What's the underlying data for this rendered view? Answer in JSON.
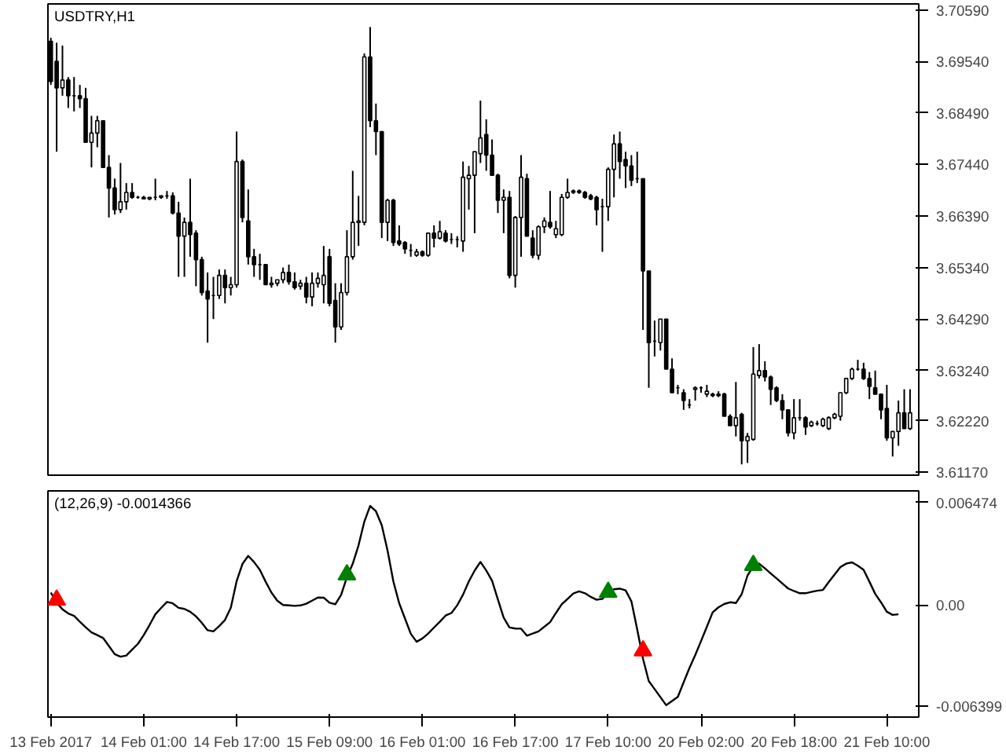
{
  "chart_data": [
    {
      "type": "candlestick",
      "title": "USDTRY,H1",
      "color": "#000000",
      "tick_labels": "y",
      "grid": false,
      "categories": [
        null,
        null,
        null,
        null,
        null,
        null,
        null,
        null,
        null,
        null,
        null,
        null,
        null,
        null,
        null,
        null,
        null,
        null,
        null,
        null,
        null,
        null,
        null,
        null,
        null,
        null,
        null,
        null,
        null,
        null,
        null,
        null,
        null,
        null,
        null,
        null,
        null,
        null,
        null,
        null,
        null,
        null,
        null,
        null,
        null,
        null,
        null,
        null,
        null,
        null,
        null,
        null,
        null,
        null,
        null,
        null,
        null,
        null,
        null,
        null,
        null,
        null,
        null,
        null,
        null,
        null,
        null,
        null,
        null,
        null,
        null,
        null,
        null,
        null,
        null,
        null,
        null,
        null,
        null,
        null,
        null,
        null,
        null,
        null,
        null,
        null,
        null,
        null,
        null,
        null,
        null,
        null,
        null,
        null,
        null,
        null,
        null,
        null,
        null,
        null,
        null,
        null,
        null,
        null,
        null,
        null,
        null,
        null,
        null,
        null,
        null,
        null,
        null,
        null,
        null,
        null,
        null,
        null,
        null,
        null,
        null,
        null,
        null,
        null,
        null,
        null,
        null,
        null,
        null,
        null,
        null,
        null,
        null,
        null,
        null,
        null,
        null,
        null,
        null,
        null,
        null,
        null,
        null,
        null,
        null,
        null,
        null,
        null,
        null
      ],
      "ohlc": [
        [
          3.6995,
          3.7002,
          3.6906,
          3.6913
        ],
        [
          3.6954,
          3.6992,
          3.677,
          3.69
        ],
        [
          3.69,
          3.6986,
          3.6884,
          3.6916
        ],
        [
          3.6916,
          3.6922,
          3.6859,
          3.6884
        ],
        [
          3.6884,
          3.6922,
          3.6852,
          3.6884
        ],
        [
          3.6884,
          3.6906,
          3.6859,
          3.6878
        ],
        [
          3.6878,
          3.69,
          3.6789,
          3.6789
        ],
        [
          3.6789,
          3.6843,
          3.6738,
          3.6808
        ],
        [
          3.6808,
          3.6843,
          3.6779,
          3.6833
        ],
        [
          3.6833,
          3.6833,
          3.6738,
          3.6738
        ],
        [
          3.6738,
          3.6763,
          3.6636,
          3.6696
        ],
        [
          3.6696,
          3.6715,
          3.6642,
          3.6652
        ],
        [
          3.6652,
          3.6747,
          3.6645,
          3.6668
        ],
        [
          3.6668,
          3.6706,
          3.6652,
          3.6687
        ],
        [
          3.6687,
          3.6706,
          3.6674,
          3.6677
        ],
        [
          3.6677,
          3.668,
          3.6674,
          3.6677
        ],
        [
          3.6677,
          3.668,
          3.6674,
          3.6674
        ],
        [
          3.6674,
          3.6677,
          3.6671,
          3.6677
        ],
        [
          3.6677,
          3.6715,
          3.6671,
          3.6677
        ],
        [
          3.6677,
          3.668,
          3.6674,
          3.668
        ],
        [
          3.668,
          3.669,
          3.6674,
          3.668
        ],
        [
          3.668,
          3.6687,
          3.6642,
          3.6645
        ],
        [
          3.6645,
          3.6668,
          3.6515,
          3.6598
        ],
        [
          3.6598,
          3.6636,
          3.6515,
          3.6626
        ],
        [
          3.6626,
          3.6715,
          3.6556,
          3.6601
        ],
        [
          3.6604,
          3.661,
          3.6496,
          3.655
        ],
        [
          3.655,
          3.6556,
          3.6477,
          3.6483
        ],
        [
          3.6486,
          3.6524,
          3.6381,
          3.647
        ],
        [
          3.6477,
          3.6515,
          3.6429,
          3.6477
        ],
        [
          3.6477,
          3.653,
          3.647,
          3.6518
        ],
        [
          3.6518,
          3.653,
          3.6461,
          3.6493
        ],
        [
          3.6493,
          3.6515,
          3.6477,
          3.6499
        ],
        [
          3.6499,
          3.6811,
          3.6493,
          3.675
        ],
        [
          3.675,
          3.6754,
          3.6626,
          3.6636
        ],
        [
          3.6629,
          3.6693,
          3.654,
          3.6556
        ],
        [
          3.6556,
          3.6572,
          3.6515,
          3.654
        ],
        [
          3.654,
          3.6562,
          3.6509,
          3.654
        ],
        [
          3.654,
          3.654,
          3.6499,
          3.6499
        ],
        [
          3.6499,
          3.6515,
          3.6493,
          3.6502
        ],
        [
          3.6502,
          3.6509,
          3.6496,
          3.6509
        ],
        [
          3.6509,
          3.6534,
          3.6502,
          3.6524
        ],
        [
          3.6524,
          3.654,
          3.6499,
          3.6505
        ],
        [
          3.6505,
          3.6524,
          3.6489,
          3.6493
        ],
        [
          3.6496,
          3.6509,
          3.6489,
          3.6502
        ],
        [
          3.6502,
          3.6515,
          3.6461,
          3.6474
        ],
        [
          3.6474,
          3.6524,
          3.6455,
          3.6502
        ],
        [
          3.6502,
          3.6524,
          3.6493,
          3.6512
        ],
        [
          3.6499,
          3.6578,
          3.6461,
          3.6518
        ],
        [
          3.6556,
          3.6572,
          3.6455,
          3.6461
        ],
        [
          3.6467,
          3.6502,
          3.6381,
          3.6413
        ],
        [
          3.6413,
          3.6502,
          3.6407,
          3.6483
        ],
        [
          3.6483,
          3.661,
          3.6477,
          3.6556
        ],
        [
          3.6556,
          3.6731,
          3.655,
          3.6626
        ],
        [
          3.6626,
          3.668,
          3.6578,
          3.6629
        ],
        [
          3.6626,
          3.697,
          3.662,
          3.6963
        ],
        [
          3.6963,
          3.7024,
          3.682,
          3.6833
        ],
        [
          3.6833,
          3.6868,
          3.6763,
          3.6811
        ],
        [
          3.6811,
          3.6811,
          3.6594,
          3.6626
        ],
        [
          3.6626,
          3.6674,
          3.6588,
          3.6671
        ],
        [
          3.6671,
          3.6674,
          3.6578,
          3.6585
        ],
        [
          3.6588,
          3.662,
          3.6578,
          3.6582
        ],
        [
          3.6585,
          3.6588,
          3.6562,
          3.6572
        ],
        [
          3.6569,
          3.6582,
          3.6556,
          3.6569
        ],
        [
          3.6559,
          3.6572,
          3.6556,
          3.6566
        ],
        [
          3.6566,
          3.6569,
          3.6556,
          3.6559
        ],
        [
          3.6559,
          3.6604,
          3.6556,
          3.6604
        ],
        [
          3.6604,
          3.662,
          3.6575,
          3.6594
        ],
        [
          3.6594,
          3.6629,
          3.6591,
          3.6607
        ],
        [
          3.6604,
          3.661,
          3.6585,
          3.6588
        ],
        [
          3.6591,
          3.6604,
          3.6582,
          3.6591
        ],
        [
          3.6591,
          3.6598,
          3.6575,
          3.6591
        ],
        [
          3.6588,
          3.675,
          3.6566,
          3.6718
        ],
        [
          3.6715,
          3.6741,
          3.6652,
          3.6722
        ],
        [
          3.6722,
          3.677,
          3.6604,
          3.677
        ],
        [
          3.6766,
          3.6874,
          3.6747,
          3.6798
        ],
        [
          3.6805,
          3.6836,
          3.6731,
          3.6763
        ],
        [
          3.6763,
          3.6795,
          3.6722,
          3.6722
        ],
        [
          3.6722,
          3.6725,
          3.6645,
          3.6671
        ],
        [
          3.6671,
          3.6693,
          3.6604,
          3.6677
        ],
        [
          3.6677,
          3.669,
          3.6512,
          3.6518
        ],
        [
          3.6518,
          3.6639,
          3.6493,
          3.6636
        ],
        [
          3.6636,
          3.6763,
          3.6556,
          3.6718
        ],
        [
          3.6715,
          3.6725,
          3.6598,
          3.6598
        ],
        [
          3.6594,
          3.661,
          3.6553,
          3.6559
        ],
        [
          3.6559,
          3.662,
          3.655,
          3.6617
        ],
        [
          3.6617,
          3.6636,
          3.6604,
          3.6629
        ],
        [
          3.6626,
          3.669,
          3.6613,
          3.6617
        ],
        [
          3.6601,
          3.6629,
          3.6594,
          3.6613
        ],
        [
          3.6601,
          3.6684,
          3.6598,
          3.6677
        ],
        [
          3.6677,
          3.6715,
          3.6674,
          3.6687
        ],
        [
          3.6687,
          3.6693,
          3.6684,
          3.669
        ],
        [
          3.669,
          3.6693,
          3.6684,
          3.6687
        ],
        [
          3.6687,
          3.669,
          3.6674,
          3.6677
        ],
        [
          3.668,
          3.6684,
          3.6671,
          3.6674
        ],
        [
          3.6677,
          3.668,
          3.662,
          3.6652
        ],
        [
          3.6658,
          3.6674,
          3.6566,
          3.6658
        ],
        [
          3.6658,
          3.6738,
          3.6629,
          3.6734
        ],
        [
          3.6734,
          3.6805,
          3.6677,
          3.6786
        ],
        [
          3.6786,
          3.6811,
          3.6715,
          3.675
        ],
        [
          3.6754,
          3.677,
          3.6696,
          3.6741
        ],
        [
          3.6741,
          3.6763,
          3.67,
          3.6712
        ],
        [
          3.6715,
          3.677,
          3.6706,
          3.6715
        ],
        [
          3.6715,
          3.6715,
          3.6407,
          3.6527
        ],
        [
          3.6527,
          3.6527,
          3.6289,
          3.6381
        ],
        [
          3.6384,
          3.6426,
          3.6353,
          3.6384
        ],
        [
          3.6381,
          3.6429,
          3.6365,
          3.6429
        ],
        [
          3.6429,
          3.6429,
          3.6327,
          3.6327
        ],
        [
          3.6327,
          3.6349,
          3.6279,
          3.6279
        ],
        [
          3.6289,
          3.6295,
          3.6276,
          3.6289
        ],
        [
          3.6279,
          3.6286,
          3.6244,
          3.6263
        ],
        [
          3.6254,
          3.6266,
          3.6247,
          3.6254
        ],
        [
          3.6286,
          3.6292,
          3.6263,
          3.6289
        ],
        [
          3.6289,
          3.6292,
          3.6279,
          3.6289
        ],
        [
          3.6276,
          3.6295,
          3.627,
          3.6282
        ],
        [
          3.6276,
          3.6279,
          3.627,
          3.6273
        ],
        [
          3.6276,
          3.6282,
          3.627,
          3.6273
        ],
        [
          3.6276,
          3.6279,
          3.6231,
          3.6231
        ],
        [
          3.6231,
          3.6235,
          3.6212,
          3.6212
        ],
        [
          3.6212,
          3.6301,
          3.619,
          3.6228
        ],
        [
          3.6235,
          3.6238,
          3.6133,
          3.6181
        ],
        [
          3.6181,
          3.6197,
          3.6136,
          3.619
        ],
        [
          3.6184,
          3.6372,
          3.6181,
          3.6317
        ],
        [
          3.6314,
          3.6378,
          3.6308,
          3.6324
        ],
        [
          3.6324,
          3.6343,
          3.6302,
          3.6311
        ],
        [
          3.6311,
          3.6314,
          3.6254,
          3.6286
        ],
        [
          3.6289,
          3.6292,
          3.626,
          3.6263
        ],
        [
          3.6263,
          3.6276,
          3.6225,
          3.6244
        ],
        [
          3.6244,
          3.6244,
          3.619,
          3.6197
        ],
        [
          3.6197,
          3.6266,
          3.6184,
          3.6228
        ],
        [
          3.6228,
          3.6266,
          3.6222,
          3.6228
        ],
        [
          3.6228,
          3.6231,
          3.6193,
          3.6209
        ],
        [
          3.6212,
          3.6222,
          3.6209,
          3.6219
        ],
        [
          3.6216,
          3.6222,
          3.6212,
          3.6216
        ],
        [
          3.6212,
          3.6228,
          3.6209,
          3.6225
        ],
        [
          3.6206,
          3.6231,
          3.6203,
          3.6228
        ],
        [
          3.6228,
          3.6238,
          3.6225,
          3.6235
        ],
        [
          3.6231,
          3.6279,
          3.6222,
          3.6279
        ],
        [
          3.6279,
          3.6308,
          3.6276,
          3.6308
        ],
        [
          3.6308,
          3.633,
          3.6305,
          3.6327
        ],
        [
          3.6327,
          3.6346,
          3.6324,
          3.6327
        ],
        [
          3.6327,
          3.634,
          3.6305,
          3.6308
        ],
        [
          3.6308,
          3.6321,
          3.6266,
          3.6292
        ],
        [
          3.6289,
          3.6324,
          3.6276,
          3.6276
        ],
        [
          3.6276,
          3.6276,
          3.6225,
          3.6244
        ],
        [
          3.6247,
          3.6295,
          3.6181,
          3.6187
        ],
        [
          3.6187,
          3.62,
          3.6149,
          3.62
        ],
        [
          3.62,
          3.6263,
          3.6171,
          3.6238
        ],
        [
          3.6238,
          3.6286,
          3.6206,
          3.6206
        ],
        [
          3.6206,
          3.6286,
          3.6203,
          3.6238
        ]
      ],
      "ylim": [
        3.6111,
        3.7071
      ],
      "yticks": [
        {
          "value": 3.7059,
          "label": "3.70590"
        },
        {
          "value": 3.6954,
          "label": "3.69540"
        },
        {
          "value": 3.6849,
          "label": "3.68490"
        },
        {
          "value": 3.6744,
          "label": "3.67440"
        },
        {
          "value": 3.6639,
          "label": "3.66390"
        },
        {
          "value": 3.6534,
          "label": "3.65340"
        },
        {
          "value": 3.6429,
          "label": "3.64290"
        },
        {
          "value": 3.6324,
          "label": "3.63240"
        },
        {
          "value": 3.6222,
          "label": "3.62220"
        },
        {
          "value": 3.6117,
          "label": "3.61170"
        }
      ]
    },
    {
      "type": "line",
      "title": "(12,26,9) -0.0014366",
      "grid": false,
      "series": [
        {
          "color": "#000000",
          "values": [
            0.00077,
            0.00014,
            -0.00029,
            -0.00055,
            -0.0007,
            -0.00107,
            -0.00142,
            -0.00174,
            -0.00192,
            -0.0021,
            -0.00261,
            -0.00312,
            -0.00328,
            -0.00321,
            -0.00284,
            -0.00247,
            -0.00192,
            -0.00128,
            -0.0006,
            -0.0002,
            0.00018,
            9e-05,
            -0.00019,
            -0.00026,
            -0.00044,
            -0.00073,
            -0.00114,
            -0.00161,
            -0.00168,
            -0.00135,
            -0.00096,
            -0.00019,
            0.00149,
            0.00258,
            0.00309,
            0.0027,
            0.00221,
            0.00146,
            0.00077,
            0.00026,
            -1e-05,
            -4e-05,
            -7e-05,
            -4e-05,
            7e-05,
            0.00026,
            0.00046,
            0.00045,
            0.00013,
            3e-05,
            0.00063,
            0.00174,
            0.00259,
            0.00376,
            0.00526,
            0.00625,
            0.00591,
            0.00503,
            0.00343,
            0.00148,
            0.0001,
            -0.00087,
            -0.00183,
            -0.00234,
            -0.00213,
            -0.00182,
            -0.00144,
            -0.00107,
            -0.00068,
            -0.00052,
            -3e-05,
            0.00064,
            0.00148,
            0.00216,
            0.00271,
            0.00217,
            0.00152,
            0.00034,
            -0.00081,
            -0.00143,
            -0.0015,
            -0.00151,
            -0.00195,
            -0.00182,
            -0.00168,
            -0.00139,
            -0.0011,
            -0.00052,
            3e-05,
            0.00037,
            0.00071,
            0.00085,
            0.00073,
            0.0005,
            0.00032,
            0.00037,
            0.00077,
            0.00098,
            0.00102,
            0.00091,
            0.00022,
            -0.00155,
            -0.00341,
            -0.00483,
            -0.00533,
            -0.00584,
            -0.00635,
            -0.00608,
            -0.00582,
            -0.0049,
            -0.004,
            -0.00318,
            -0.00229,
            -0.00139,
            -0.00048,
            -0.00016,
            5e-05,
            0.00016,
            0.00011,
            0.00067,
            0.00185,
            0.00243,
            0.0026,
            0.0023,
            0.00198,
            0.00167,
            0.00135,
            0.00103,
            0.00087,
            0.00073,
            0.00073,
            0.00081,
            0.00089,
            0.00094,
            0.00144,
            0.00191,
            0.00238,
            0.0026,
            0.00268,
            0.00247,
            0.00221,
            0.00146,
            0.00069,
            0.00015,
            -0.00044,
            -0.00064,
            -0.0006,
            null,
            null
          ]
        },
        {
          "type": "scatter",
          "marker": "triangle",
          "color": "#008000",
          "values": [
            null,
            null,
            null,
            null,
            null,
            null,
            null,
            null,
            null,
            null,
            null,
            null,
            null,
            null,
            null,
            null,
            null,
            null,
            null,
            null,
            null,
            null,
            null,
            null,
            null,
            null,
            null,
            null,
            null,
            null,
            null,
            null,
            null,
            null,
            null,
            null,
            null,
            null,
            null,
            null,
            null,
            null,
            null,
            null,
            null,
            null,
            null,
            null,
            null,
            null,
            null,
            0.0019,
            null,
            null,
            null,
            null,
            null,
            null,
            null,
            null,
            null,
            null,
            null,
            null,
            null,
            null,
            null,
            null,
            null,
            null,
            null,
            null,
            null,
            null,
            null,
            null,
            null,
            null,
            null,
            null,
            null,
            null,
            null,
            null,
            null,
            null,
            null,
            null,
            null,
            null,
            null,
            null,
            null,
            null,
            null,
            null,
            0.0008,
            null,
            null,
            null,
            null,
            null,
            null,
            null,
            null,
            null,
            null,
            null,
            null,
            null,
            null,
            null,
            null,
            null,
            null,
            null,
            null,
            null,
            null,
            null,
            null,
            0.0025,
            null,
            null,
            null,
            null,
            null,
            null,
            null,
            null,
            null,
            null,
            null,
            null,
            null,
            null,
            null,
            null,
            null,
            null,
            null,
            null,
            null,
            null,
            null,
            null,
            null,
            null,
            null
          ]
        },
        {
          "type": "scatter",
          "marker": "triangle",
          "color": "#ff0000",
          "values": [
            null,
            0.0003,
            null,
            null,
            null,
            null,
            null,
            null,
            null,
            null,
            null,
            null,
            null,
            null,
            null,
            null,
            null,
            null,
            null,
            null,
            null,
            null,
            null,
            null,
            null,
            null,
            null,
            null,
            null,
            null,
            null,
            null,
            null,
            null,
            null,
            null,
            null,
            null,
            null,
            null,
            null,
            null,
            null,
            null,
            null,
            null,
            null,
            null,
            null,
            null,
            null,
            null,
            null,
            null,
            null,
            null,
            null,
            null,
            null,
            null,
            null,
            null,
            null,
            null,
            null,
            null,
            null,
            null,
            null,
            null,
            null,
            null,
            null,
            null,
            null,
            null,
            null,
            null,
            null,
            null,
            null,
            null,
            null,
            null,
            null,
            null,
            null,
            null,
            null,
            null,
            null,
            null,
            null,
            null,
            null,
            null,
            null,
            null,
            null,
            null,
            null,
            null,
            -0.0029,
            null,
            null,
            null,
            null,
            null,
            null,
            null,
            null,
            null,
            null,
            null,
            null,
            null,
            null,
            null,
            null,
            null,
            null,
            null,
            null,
            null,
            null,
            null,
            null,
            null,
            null,
            null,
            null,
            null,
            null,
            null,
            null,
            null,
            null,
            null,
            null,
            null,
            null,
            null,
            null,
            null,
            null,
            null,
            null,
            null,
            null
          ]
        }
      ],
      "categories": [
        "13 Feb 2017",
        null,
        null,
        null,
        null,
        null,
        null,
        null,
        null,
        null,
        null,
        null,
        null,
        null,
        null,
        null,
        "14 Feb 01:00",
        null,
        null,
        null,
        null,
        null,
        null,
        null,
        null,
        null,
        null,
        null,
        null,
        null,
        null,
        null,
        "14 Feb 17:00",
        null,
        null,
        null,
        null,
        null,
        null,
        null,
        null,
        null,
        null,
        null,
        null,
        null,
        null,
        null,
        "15 Feb 09:00",
        null,
        null,
        null,
        null,
        null,
        null,
        null,
        null,
        null,
        null,
        null,
        null,
        null,
        null,
        null,
        "16 Feb 01:00",
        null,
        null,
        null,
        null,
        null,
        null,
        null,
        null,
        null,
        null,
        null,
        null,
        null,
        null,
        null,
        "16 Feb 17:00",
        null,
        null,
        null,
        null,
        null,
        null,
        null,
        null,
        null,
        null,
        null,
        null,
        null,
        null,
        null,
        "17 Feb 10:00",
        null,
        null,
        null,
        null,
        null,
        null,
        null,
        null,
        null,
        null,
        null,
        null,
        null,
        null,
        null,
        "20 Feb 02:00",
        null,
        null,
        null,
        null,
        null,
        null,
        null,
        null,
        null,
        null,
        null,
        null,
        null,
        null,
        null,
        "20 Feb 18:00",
        null,
        null,
        null,
        null,
        null,
        null,
        null,
        null,
        null,
        null,
        null,
        null,
        null,
        null,
        null,
        "21 Feb 10:00",
        null,
        null,
        null,
        null
      ],
      "ylim": [
        -0.0071,
        0.0072
      ],
      "yticks": [
        {
          "value": 0.006474,
          "label": "0.006474"
        },
        {
          "value": 0,
          "label": "0.00"
        },
        {
          "value": -0.006399,
          "label": "-0.006399"
        }
      ]
    }
  ]
}
